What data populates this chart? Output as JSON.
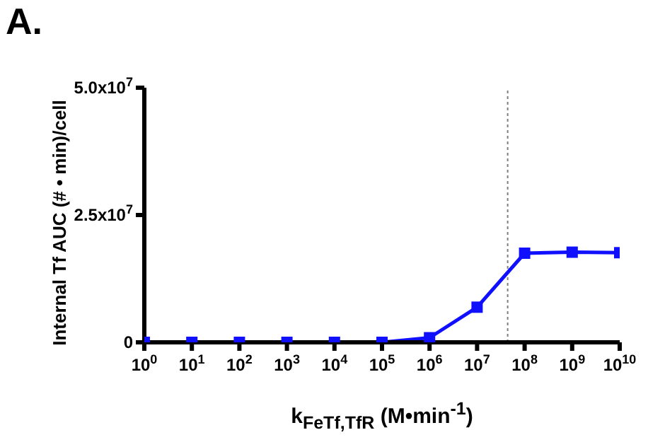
{
  "chart_data": {
    "type": "line",
    "title": "A.",
    "xlabel": "k$_{FeTf,TfR}$ (M•min$^{-1}$)",
    "ylabel": "Internal Tf AUC (# • min)/cell",
    "x": [
      1,
      10,
      100,
      1000,
      10000,
      100000,
      1000000,
      10000000,
      100000000,
      1000000000,
      10000000000
    ],
    "series": [
      {
        "color": "#1010ff",
        "values": [
          0,
          0,
          0,
          0,
          0,
          0,
          900000,
          6900000,
          17500000,
          17700000,
          17600000
        ]
      }
    ],
    "log": "x",
    "xlim": [
      1,
      10000000000
    ],
    "xticks": [
      {
        "value": 1,
        "label": "10$^{0}$"
      },
      {
        "value": 10,
        "label": "10$^{1}$"
      },
      {
        "value": 100,
        "label": "10$^{2}$"
      },
      {
        "value": 1000,
        "label": "10$^{3}$"
      },
      {
        "value": 10000,
        "label": "10$^{4}$"
      },
      {
        "value": 100000,
        "label": "10$^{5}$"
      },
      {
        "value": 1000000,
        "label": "10$^{6}$"
      },
      {
        "value": 10000000,
        "label": "10$^{7}$"
      },
      {
        "value": 100000000,
        "label": "10$^{8}$"
      },
      {
        "value": 1000000000,
        "label": "10$^{9}$"
      },
      {
        "value": 10000000000,
        "label": "10$^{10}$"
      }
    ],
    "ylim": [
      0,
      50000000
    ],
    "yticks": [
      0,
      {
        "value": 25000000,
        "label": "2.5x10$^{7}$"
      },
      {
        "value": 50000000,
        "label": "5.0x10$^{7}$"
      }
    ],
    "ref_lines": [
      {
        "axis": "x",
        "value": 44000000,
        "color": "#808080",
        "line_style": "dotted"
      }
    ],
    "marker": "square",
    "line_style": "solid",
    "grid": false,
    "legend": false
  }
}
